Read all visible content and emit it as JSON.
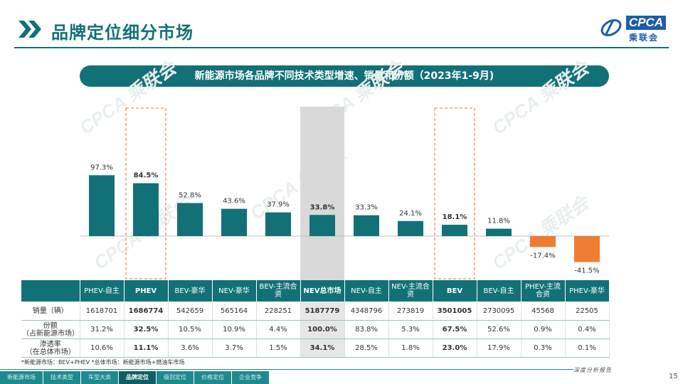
{
  "page": {
    "title": "品牌定位细分市场",
    "banner": "新能源市场各品牌不同技术类型增速、销量和份额（2023年1-9月)",
    "logo_text": "CPCA",
    "logo_cn": "乘联会",
    "logo_sub": "CPCA",
    "page_number": "15",
    "footer_note": "*新能源市场：BEV+PHEV    *总体市场：新能源市场+燃油车市场",
    "footer_right": "深度分析报告",
    "watermark": "CPCA 乘联会"
  },
  "nav": {
    "items": [
      "新能源市场",
      "技术类型",
      "车型大类",
      "品牌定位",
      "级别定位",
      "价格定位",
      "企业竞争"
    ],
    "active_index": 3
  },
  "colors": {
    "teal": "#127177",
    "orange": "#ef7d31",
    "highlight_box": "#e8722e",
    "shaded_column": "#d9d9d9"
  },
  "chart_data": {
    "type": "bar",
    "categories": [
      "PHEV-自主",
      "PHEV",
      "BEV-豪华",
      "NEV-豪华",
      "BEV-主流合资",
      "NEV总市场",
      "NEV-自主",
      "NEV-主流合资",
      "BEV",
      "BEV-自主",
      "PHEV-主流合资",
      "PHEV-豪华"
    ],
    "values": [
      97.3,
      84.5,
      52.8,
      43.6,
      37.9,
      33.8,
      33.3,
      24.1,
      18.1,
      11.8,
      -17.4,
      -41.5
    ],
    "labels": [
      "97.3%",
      "84.5%",
      "52.8%",
      "43.6%",
      "37.9%",
      "33.8%",
      "33.3%",
      "24.1%",
      "18.1%",
      "11.8%",
      "-17.4%",
      "-41.5%"
    ],
    "unit": "%",
    "highlighted": [
      "PHEV",
      "BEV"
    ],
    "shaded": [
      "NEV总市场"
    ],
    "title": "",
    "xlabel": "",
    "ylabel": "",
    "ylim": [
      -45,
      100
    ],
    "grid": false,
    "legend": "none"
  },
  "table": {
    "rows": [
      {
        "label": "销量（辆）",
        "values": [
          "1618701",
          "1686774",
          "542659",
          "565164",
          "228251",
          "5187779",
          "4348796",
          "273819",
          "3501005",
          "2730095",
          "45568",
          "22505"
        ]
      },
      {
        "label": "份额\n（占新能源市场）",
        "values": [
          "31.2%",
          "32.5%",
          "10.5%",
          "10.9%",
          "4.4%",
          "100.0%",
          "83.8%",
          "5.3%",
          "67.5%",
          "52.6%",
          "0.9%",
          "0.4%"
        ]
      },
      {
        "label": "渗透率\n（在总体市场）",
        "values": [
          "10.6%",
          "11.1%",
          "3.6%",
          "3.7%",
          "1.5%",
          "34.1%",
          "28.5%",
          "1.8%",
          "23.0%",
          "17.9%",
          "0.3%",
          "0.1%"
        ]
      }
    ]
  }
}
